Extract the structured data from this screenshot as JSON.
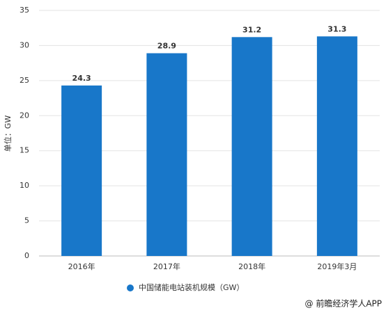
{
  "chart_data": {
    "type": "bar",
    "y_label": "单位：GW",
    "categories": [
      "2016年",
      "2017年",
      "2018年",
      "2019年3月"
    ],
    "series": [
      {
        "name": "中国储能电站装机规模（GW）",
        "color": "#1877c9",
        "values": [
          24.3,
          28.9,
          31.2,
          31.3
        ]
      }
    ],
    "ylim": [
      0,
      35
    ],
    "yticks": [
      0,
      5,
      10,
      15,
      20,
      25,
      30,
      35
    ],
    "grid": true,
    "footer": "@ 前瞻经济学人APP"
  }
}
